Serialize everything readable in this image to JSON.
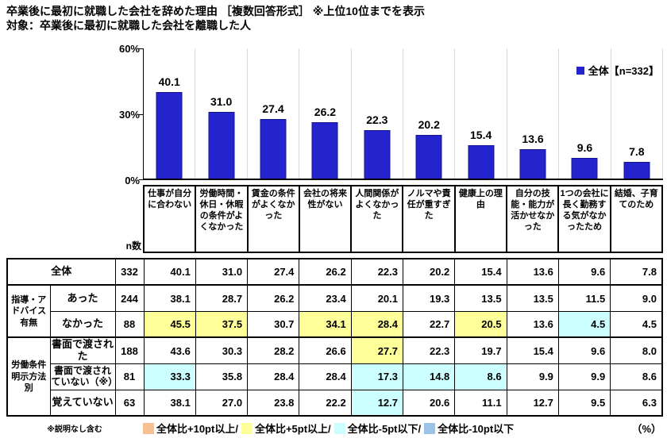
{
  "title": {
    "line1": "卒業後に最初に就職した会社を辞めた理由 ［複数回答形式］ ※上位10位までを表示",
    "line2": "対象：卒業後に最初に就職した会社を離職した人"
  },
  "chart_data": {
    "type": "bar",
    "title": "卒業後に最初に就職した会社を辞めた理由",
    "categories": [
      "仕事が自分に合わない",
      "労働時間・休日・休暇の条件がよくなかった",
      "賃金の条件がよくなかった",
      "会社の将来性がない",
      "人間関係がよくなかった",
      "ノルマや責任が重すぎた",
      "健康上の理由",
      "自分の技能・能力が活かせなかった",
      "1つの会社に長く勤務する気がなかったため",
      "結婚、子育てのため"
    ],
    "values": [
      40.1,
      31.0,
      27.4,
      26.2,
      22.3,
      20.2,
      15.4,
      13.6,
      9.6,
      7.8
    ],
    "ylim": [
      0,
      60
    ],
    "yticks": [
      "60%",
      "30%",
      "0%"
    ],
    "legend": "全体【n=332】",
    "bar_color": "#2424ce",
    "bar_border": "#14148c",
    "grid": "vertical-column-separators"
  },
  "highlight_colors": {
    "plus10": "#f7c292",
    "plus5": "#ffff99",
    "minus5": "#ccffff",
    "minus10": "#9cc2e8"
  },
  "table": {
    "n_header": "n数",
    "rows": [
      {
        "label": "全体",
        "merged": true,
        "n": "332",
        "values": [
          "40.1",
          "31.0",
          "27.4",
          "26.2",
          "22.3",
          "20.2",
          "15.4",
          "13.6",
          "9.6",
          "7.8"
        ],
        "highlights": [
          "",
          "",
          "",
          "",
          "",
          "",
          "",
          "",
          "",
          ""
        ]
      },
      {
        "group": "指導・アドバイス有無",
        "group_rowspan": 2,
        "label": "あった",
        "n": "244",
        "values": [
          "38.1",
          "28.7",
          "26.2",
          "23.4",
          "20.1",
          "19.3",
          "13.5",
          "13.5",
          "11.5",
          "9.0"
        ],
        "highlights": [
          "",
          "",
          "",
          "",
          "",
          "",
          "",
          "",
          "",
          ""
        ]
      },
      {
        "label": "なかった",
        "n": "88",
        "values": [
          "45.5",
          "37.5",
          "30.7",
          "34.1",
          "28.4",
          "22.7",
          "20.5",
          "13.6",
          "4.5",
          "4.5"
        ],
        "highlights": [
          "plus5",
          "plus5",
          "",
          "plus5",
          "plus5",
          "",
          "plus5",
          "",
          "minus5",
          ""
        ]
      },
      {
        "group": "労働条件明示方法別",
        "group_rowspan": 3,
        "label": "書面で渡された",
        "n": "188",
        "values": [
          "43.6",
          "30.3",
          "28.2",
          "26.6",
          "27.7",
          "22.3",
          "19.7",
          "15.4",
          "9.6",
          "8.0"
        ],
        "highlights": [
          "",
          "",
          "",
          "",
          "plus5",
          "",
          "",
          "",
          "",
          ""
        ]
      },
      {
        "label": "書面で渡されていない（※）",
        "small": true,
        "n": "81",
        "values": [
          "33.3",
          "35.8",
          "28.4",
          "28.4",
          "17.3",
          "14.8",
          "8.6",
          "9.9",
          "9.9",
          "8.6"
        ],
        "highlights": [
          "minus5",
          "",
          "",
          "",
          "minus5",
          "minus5",
          "minus5",
          "",
          "",
          ""
        ]
      },
      {
        "label": "覚えていない",
        "n": "63",
        "values": [
          "38.1",
          "27.0",
          "23.8",
          "22.2",
          "12.7",
          "20.6",
          "11.1",
          "12.7",
          "9.5",
          "6.3"
        ],
        "highlights": [
          "",
          "",
          "",
          "",
          "minus5",
          "",
          "",
          "",
          "",
          ""
        ]
      }
    ]
  },
  "footer": {
    "footnote": "※説明なし含む",
    "legend": [
      {
        "label": "全体比+10pt以上/",
        "color_key": "plus10"
      },
      {
        "label": "全体比+5pt以上/",
        "color_key": "plus5"
      },
      {
        "label": "全体比-5pt以下/",
        "color_key": "minus5"
      },
      {
        "label": "全体比-10pt以下",
        "color_key": "minus10"
      }
    ],
    "unit": "（%）"
  }
}
